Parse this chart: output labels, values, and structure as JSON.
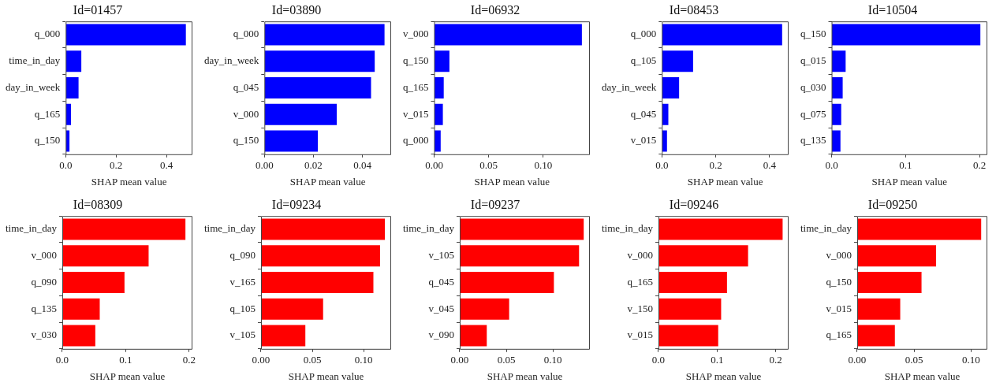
{
  "chart_data": [
    {
      "type": "bar",
      "orientation": "horizontal",
      "title": "Id=01457",
      "xlabel": "SHAP mean value",
      "categories": [
        "q_000",
        "time_in_day",
        "day_in_week",
        "q_165",
        "q_150"
      ],
      "values": [
        0.477,
        0.062,
        0.051,
        0.021,
        0.015
      ],
      "color": "#0000ff",
      "xlim": [
        0,
        0.503
      ],
      "xticks": [
        {
          "value": 0,
          "label": "0.0"
        },
        {
          "value": 0.2,
          "label": "0.2"
        },
        {
          "value": 0.4,
          "label": "0.4"
        }
      ],
      "grid": false,
      "legend": false
    },
    {
      "type": "bar",
      "orientation": "horizontal",
      "title": "Id=03890",
      "xlabel": "SHAP mean value",
      "categories": [
        "q_000",
        "day_in_week",
        "q_045",
        "v_000",
        "q_150"
      ],
      "values": [
        0.049,
        0.045,
        0.0435,
        0.0295,
        0.0218
      ],
      "color": "#0000ff",
      "xlim": [
        0,
        0.0517
      ],
      "xticks": [
        {
          "value": 0,
          "label": "0.00"
        },
        {
          "value": 0.02,
          "label": "0.02"
        },
        {
          "value": 0.04,
          "label": "0.04"
        }
      ],
      "grid": false,
      "legend": false
    },
    {
      "type": "bar",
      "orientation": "horizontal",
      "title": "Id=06932",
      "xlabel": "SHAP mean value",
      "categories": [
        "v_000",
        "q_150",
        "q_165",
        "v_015",
        "q_000"
      ],
      "values": [
        0.1353,
        0.014,
        0.0088,
        0.008,
        0.006
      ],
      "color": "#0000ff",
      "xlim": [
        0,
        0.1426
      ],
      "xticks": [
        {
          "value": 0,
          "label": "0.00"
        },
        {
          "value": 0.05,
          "label": "0.05"
        },
        {
          "value": 0.1,
          "label": "0.10"
        }
      ],
      "grid": false,
      "legend": false
    },
    {
      "type": "bar",
      "orientation": "horizontal",
      "title": "Id=08453",
      "xlabel": "SHAP mean value",
      "categories": [
        "q_000",
        "q_105",
        "day_in_week",
        "q_045",
        "v_015"
      ],
      "values": [
        0.447,
        0.116,
        0.064,
        0.024,
        0.019
      ],
      "color": "#0000ff",
      "xlim": [
        0,
        0.471
      ],
      "xticks": [
        {
          "value": 0,
          "label": "0.0"
        },
        {
          "value": 0.2,
          "label": "0.2"
        },
        {
          "value": 0.4,
          "label": "0.4"
        }
      ],
      "grid": false,
      "legend": false
    },
    {
      "type": "bar",
      "orientation": "horizontal",
      "title": "Id=10504",
      "xlabel": "SHAP mean value",
      "categories": [
        "q_150",
        "q_015",
        "q_030",
        "q_075",
        "q_135"
      ],
      "values": [
        0.201,
        0.019,
        0.015,
        0.013,
        0.012
      ],
      "color": "#0000ff",
      "xlim": [
        0,
        0.2104
      ],
      "xticks": [
        {
          "value": 0,
          "label": "0.0"
        },
        {
          "value": 0.1,
          "label": "0.1"
        },
        {
          "value": 0.2,
          "label": "0.2"
        }
      ],
      "grid": false,
      "legend": false
    },
    {
      "type": "bar",
      "orientation": "horizontal",
      "title": "Id=08309",
      "xlabel": "SHAP mean value",
      "categories": [
        "time_in_day",
        "v_000",
        "q_090",
        "q_135",
        "v_030"
      ],
      "values": [
        0.194,
        0.136,
        0.098,
        0.059,
        0.052
      ],
      "color": "#ff0000",
      "xlim": [
        0,
        0.205
      ],
      "xticks": [
        {
          "value": 0,
          "label": "0.0"
        },
        {
          "value": 0.1,
          "label": "0.1"
        },
        {
          "value": 0.2,
          "label": "0.2"
        }
      ],
      "grid": false,
      "legend": false
    },
    {
      "type": "bar",
      "orientation": "horizontal",
      "title": "Id=09234",
      "xlabel": "SHAP mean value",
      "categories": [
        "time_in_day",
        "q_090",
        "v_165",
        "q_105",
        "v_105"
      ],
      "values": [
        0.1207,
        0.116,
        0.1095,
        0.0605,
        0.0432
      ],
      "color": "#ff0000",
      "xlim": [
        0,
        0.1268
      ],
      "xticks": [
        {
          "value": 0,
          "label": "0.00"
        },
        {
          "value": 0.05,
          "label": "0.05"
        },
        {
          "value": 0.1,
          "label": "0.10"
        }
      ],
      "grid": false,
      "legend": false
    },
    {
      "type": "bar",
      "orientation": "horizontal",
      "title": "Id=09237",
      "xlabel": "SHAP mean value",
      "categories": [
        "time_in_day",
        "v_105",
        "q_045",
        "v_045",
        "v_090"
      ],
      "values": [
        0.133,
        0.128,
        0.101,
        0.053,
        0.029
      ],
      "color": "#ff0000",
      "xlim": [
        0,
        0.1396
      ],
      "xticks": [
        {
          "value": 0,
          "label": "0.00"
        },
        {
          "value": 0.05,
          "label": "0.05"
        },
        {
          "value": 0.1,
          "label": "0.10"
        }
      ],
      "grid": false,
      "legend": false
    },
    {
      "type": "bar",
      "orientation": "horizontal",
      "title": "Id=09246",
      "xlabel": "SHAP mean value",
      "categories": [
        "time_in_day",
        "v_000",
        "q_165",
        "v_150",
        "v_015"
      ],
      "values": [
        0.212,
        0.153,
        0.117,
        0.107,
        0.102
      ],
      "color": "#ff0000",
      "xlim": [
        0,
        0.2222
      ],
      "xticks": [
        {
          "value": 0,
          "label": "0.0"
        },
        {
          "value": 0.1,
          "label": "0.1"
        },
        {
          "value": 0.2,
          "label": "0.2"
        }
      ],
      "grid": false,
      "legend": false
    },
    {
      "type": "bar",
      "orientation": "horizontal",
      "title": "Id=09250",
      "xlabel": "SHAP mean value",
      "categories": [
        "time_in_day",
        "v_000",
        "q_150",
        "v_015",
        "q_165"
      ],
      "values": [
        0.1089,
        0.0693,
        0.0565,
        0.0378,
        0.0331
      ],
      "color": "#ff0000",
      "xlim": [
        0,
        0.1143
      ],
      "xticks": [
        {
          "value": 0,
          "label": "0.00"
        },
        {
          "value": 0.05,
          "label": "0.05"
        },
        {
          "value": 0.1,
          "label": "0.10"
        }
      ],
      "grid": false,
      "legend": false
    }
  ]
}
